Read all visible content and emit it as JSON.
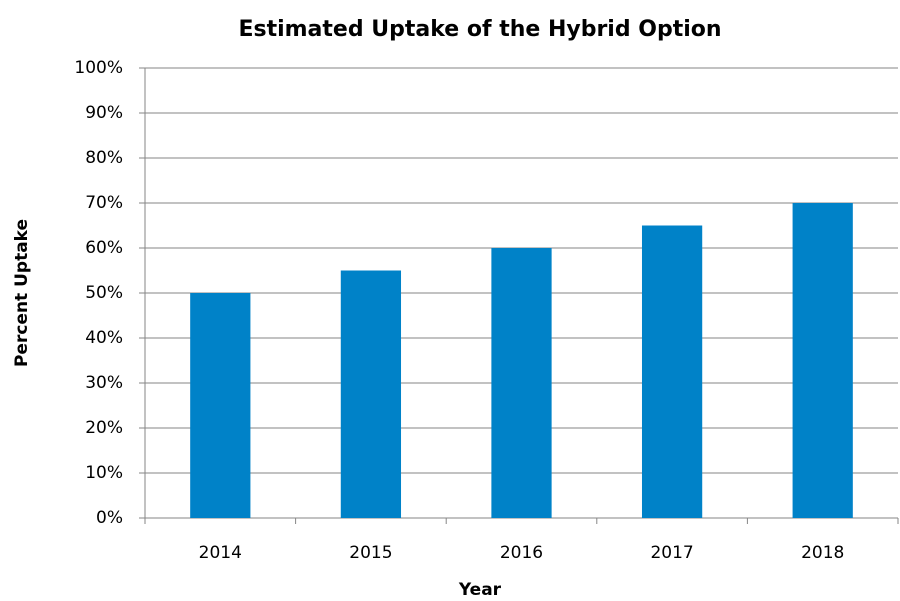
{
  "chart_data": {
    "type": "bar",
    "title": "Estimated Uptake of the Hybrid Option",
    "x_label": "Year",
    "y_label": "Percent Uptake",
    "categories": [
      "2014",
      "2015",
      "2016",
      "2017",
      "2018"
    ],
    "values": [
      50,
      55,
      60,
      65,
      70
    ],
    "color": "#0082c8",
    "ylim": [
      0,
      100
    ],
    "yticks": [
      {
        "value": 0,
        "label": "0%"
      },
      {
        "value": 10,
        "label": "10%"
      },
      {
        "value": 20,
        "label": "20%"
      },
      {
        "value": 30,
        "label": "30%"
      },
      {
        "value": 40,
        "label": "40%"
      },
      {
        "value": 50,
        "label": "50%"
      },
      {
        "value": 60,
        "label": "60%"
      },
      {
        "value": 70,
        "label": "70%"
      },
      {
        "value": 80,
        "label": "80%"
      },
      {
        "value": 90,
        "label": "90%"
      },
      {
        "value": 100,
        "label": "100%"
      }
    ],
    "grid": true
  }
}
